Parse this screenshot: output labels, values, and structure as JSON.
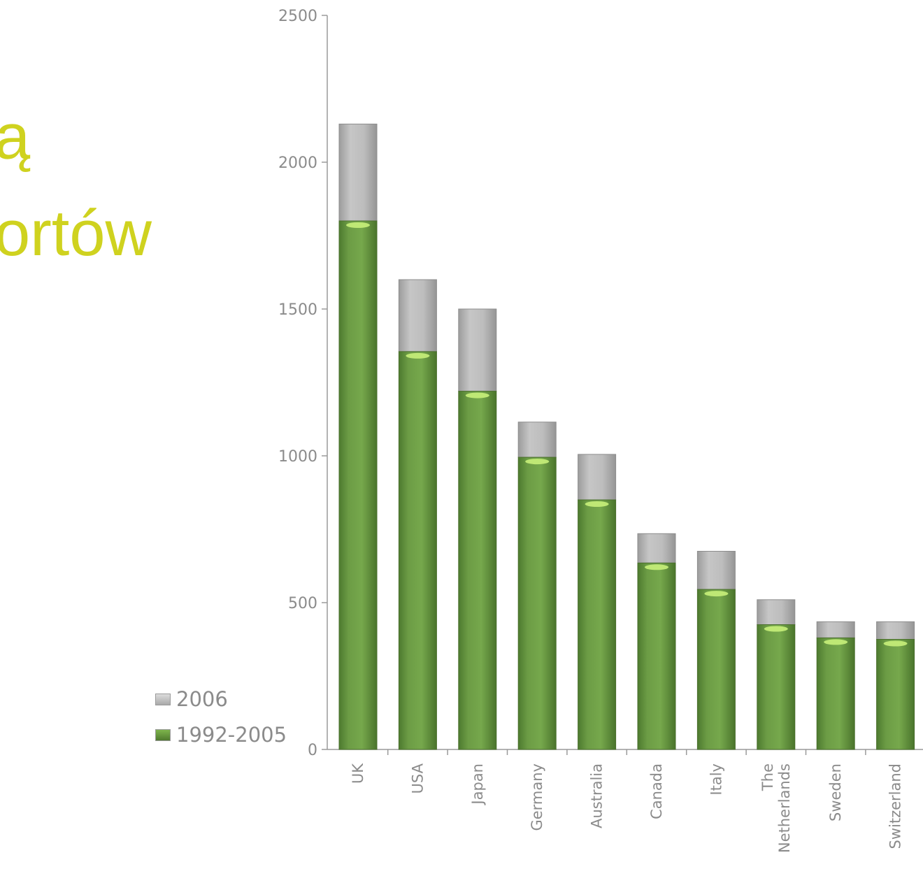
{
  "title_lines": [
    "ą",
    "ortów"
  ],
  "colors": {
    "title": "#cfd21f",
    "series_2006": "#b3b3b3",
    "series_1992_2005": "#6a9a44",
    "axis": "#8b8b8b"
  },
  "chart_data": {
    "type": "bar",
    "stacked": true,
    "categories": [
      "UK",
      "USA",
      "Japan",
      "Germany",
      "Australia",
      "Canada",
      "Italy",
      "The Netherlands",
      "Sweden",
      "Switzerland"
    ],
    "category_label_lines": [
      [
        "UK"
      ],
      [
        "USA"
      ],
      [
        "Japan"
      ],
      [
        "Germany"
      ],
      [
        "Australia"
      ],
      [
        "Canada"
      ],
      [
        "Italy"
      ],
      [
        "The",
        "Netherlands"
      ],
      [
        "Sweden"
      ],
      [
        "Switzerland"
      ]
    ],
    "series": [
      {
        "name": "1992-2005",
        "values": [
          1800,
          1355,
          1220,
          995,
          850,
          635,
          545,
          425,
          380,
          375
        ]
      },
      {
        "name": "2006",
        "values": [
          330,
          245,
          280,
          120,
          155,
          100,
          130,
          85,
          55,
          60
        ]
      }
    ],
    "yticks": [
      "0",
      "500",
      "1000",
      "1500",
      "2000",
      "2500"
    ],
    "ylim": [
      0,
      2500
    ],
    "legend": [
      "2006",
      "1992-2005"
    ],
    "legend_position": "left-bottom",
    "grid": false
  }
}
